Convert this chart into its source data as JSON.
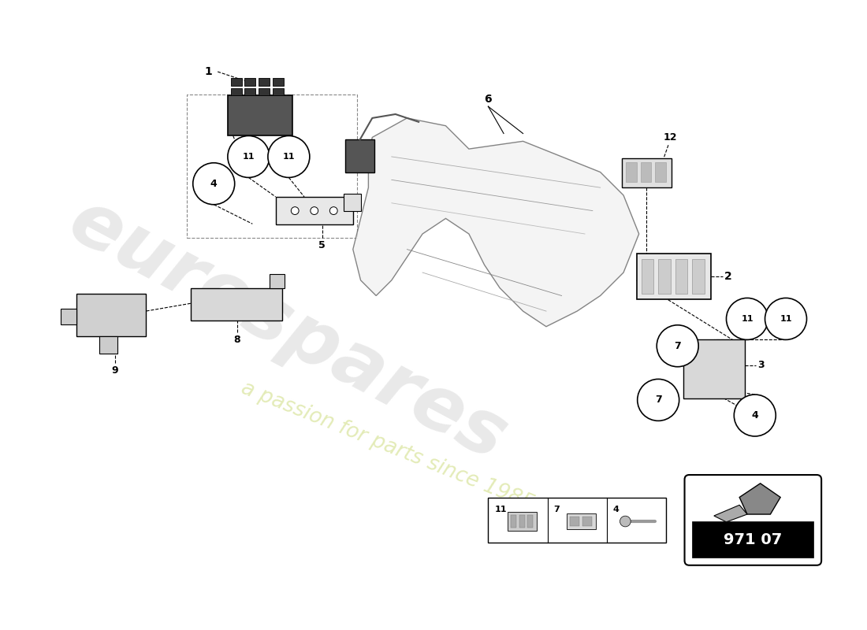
{
  "bg_color": "#ffffff",
  "watermark_text1": "eurospares",
  "watermark_text2": "a passion for parts since 1985",
  "diagram_part_code": "971 07"
}
